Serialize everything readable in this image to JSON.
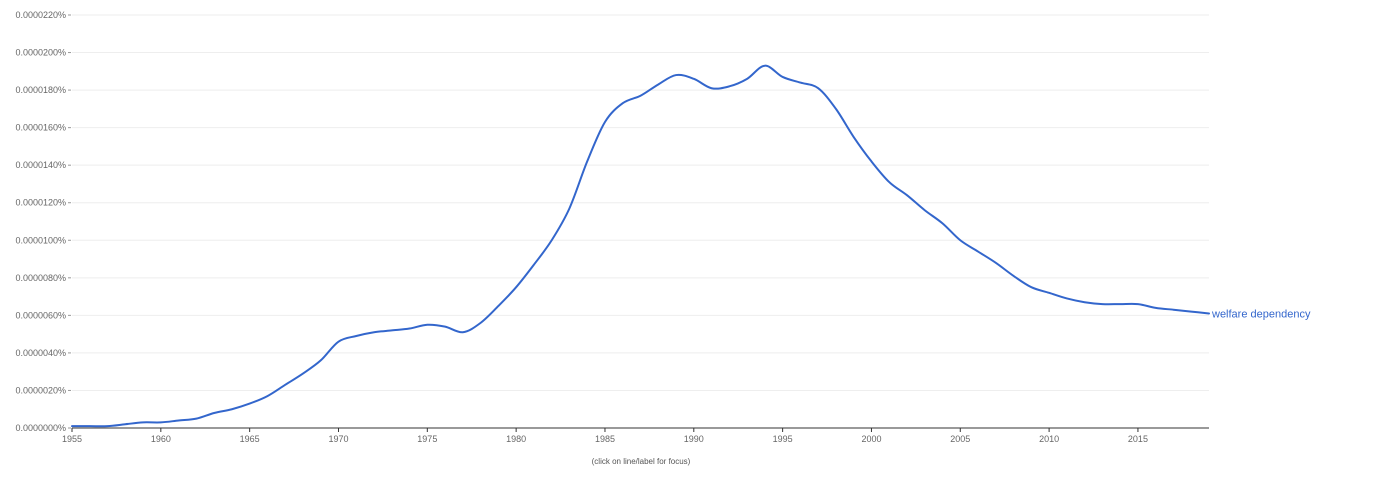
{
  "chart_data": {
    "type": "line",
    "x": [
      1955,
      1956,
      1957,
      1958,
      1959,
      1960,
      1961,
      1962,
      1963,
      1964,
      1965,
      1966,
      1967,
      1968,
      1969,
      1970,
      1971,
      1972,
      1973,
      1974,
      1975,
      1976,
      1977,
      1978,
      1979,
      1980,
      1981,
      1982,
      1983,
      1984,
      1985,
      1986,
      1987,
      1988,
      1989,
      1990,
      1991,
      1992,
      1993,
      1994,
      1995,
      1996,
      1997,
      1998,
      1999,
      2000,
      2001,
      2002,
      2003,
      2004,
      2005,
      2006,
      2007,
      2008,
      2009,
      2010,
      2011,
      2012,
      2013,
      2014,
      2015,
      2016,
      2017,
      2018,
      2019
    ],
    "series": [
      {
        "name": "welfare dependency",
        "color": "#3366cc",
        "values": [
          1e-07,
          1e-07,
          1e-07,
          2e-07,
          3e-07,
          3e-07,
          4e-07,
          5e-07,
          8e-07,
          1e-06,
          1.3e-06,
          1.7e-06,
          2.3e-06,
          2.9e-06,
          3.6e-06,
          4.6e-06,
          4.9e-06,
          5.1e-06,
          5.2e-06,
          5.3e-06,
          5.5e-06,
          5.4e-06,
          5.1e-06,
          5.6e-06,
          6.5e-06,
          7.5e-06,
          8.7e-06,
          1e-05,
          1.17e-05,
          1.42e-05,
          1.63e-05,
          1.73e-05,
          1.77e-05,
          1.83e-05,
          1.88e-05,
          1.86e-05,
          1.81e-05,
          1.82e-05,
          1.86e-05,
          1.93e-05,
          1.87e-05,
          1.84e-05,
          1.81e-05,
          1.7e-05,
          1.55e-05,
          1.42e-05,
          1.31e-05,
          1.24e-05,
          1.16e-05,
          1.09e-05,
          1e-05,
          9.4e-06,
          8.8e-06,
          8.1e-06,
          7.5e-06,
          7.2e-06,
          6.9e-06,
          6.7e-06,
          6.6e-06,
          6.6e-06,
          6.6e-06,
          6.4e-06,
          6.3e-06,
          6.2e-06,
          6.1e-06
        ]
      }
    ],
    "y_ticks": [
      "0.0000000%",
      "0.0000020%",
      "0.0000040%",
      "0.0000060%",
      "0.0000080%",
      "0.0000100%",
      "0.0000120%",
      "0.0000140%",
      "0.0000160%",
      "0.0000180%",
      "0.0000200%",
      "0.0000220%"
    ],
    "x_ticks": [
      "1955",
      "1960",
      "1965",
      "1970",
      "1975",
      "1980",
      "1985",
      "1990",
      "1995",
      "2000",
      "2005",
      "2010",
      "2015"
    ],
    "ylim": [
      0,
      2.2e-05
    ],
    "xlim": [
      1955,
      2019
    ],
    "grid": true,
    "hint": "(click on line/label for focus)"
  }
}
